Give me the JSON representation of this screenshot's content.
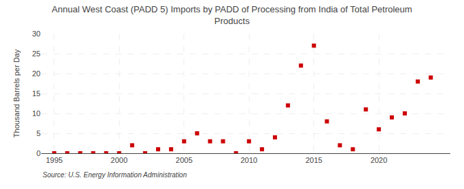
{
  "chart_data": {
    "type": "scatter",
    "title": "Annual West Coast (PADD 5) Imports by PADD of Processing from India of Total Petroleum\nProducts",
    "ylabel": "Thousand Barrels per Day",
    "annotations": [
      "Source: U.S. Energy Information Administration"
    ],
    "x": [
      1995,
      1996,
      1997,
      1998,
      1999,
      2000,
      2001,
      2002,
      2003,
      2004,
      2005,
      2006,
      2007,
      2008,
      2009,
      2010,
      2011,
      2012,
      2013,
      2014,
      2015,
      2016,
      2017,
      2018,
      2019,
      2020,
      2021,
      2022,
      2023,
      2024
    ],
    "values": [
      0,
      0,
      0,
      0,
      0,
      0,
      2,
      0,
      1,
      1,
      3,
      5,
      3,
      3,
      0,
      3,
      1,
      4,
      12,
      22,
      27,
      8,
      2,
      1,
      11,
      6,
      9,
      10,
      18,
      19
    ],
    "color": "#cc0000",
    "marker": "square",
    "xlim": [
      1994.0,
      2025.5
    ],
    "xticks": [
      1995,
      2000,
      2005,
      2010,
      2015,
      2020
    ],
    "ylim": [
      0,
      30
    ],
    "yticks": [
      0,
      5,
      10,
      15,
      20,
      25,
      30
    ],
    "grid": true
  }
}
